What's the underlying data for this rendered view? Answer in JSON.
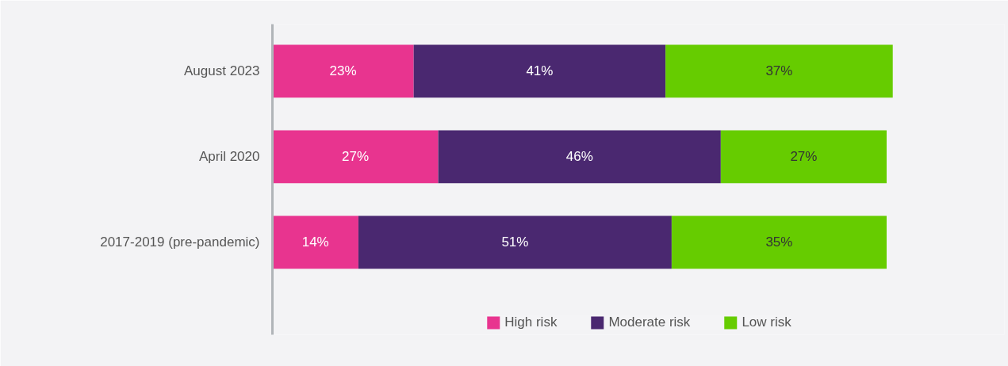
{
  "chart_data": {
    "type": "bar",
    "orientation": "horizontal",
    "stacked": true,
    "grid": false,
    "legend": "bottom",
    "tick_labels": "y",
    "categories": [
      "August 2023",
      "April 2020",
      "2017-2019 (pre-pandemic)"
    ],
    "series": [
      {
        "name": "High risk",
        "color": "#e8348f",
        "values": [
          23,
          27,
          14
        ],
        "value_labels": [
          "23%",
          "27%",
          "14%"
        ]
      },
      {
        "name": "Moderate risk",
        "color": "#4a2870",
        "values": [
          41,
          46,
          51
        ],
        "value_labels": [
          "41%",
          "46%",
          "51%"
        ]
      },
      {
        "name": "Low risk",
        "color": "#66cc00",
        "values": [
          37,
          27,
          35
        ],
        "value_labels": [
          "37%",
          "27%",
          "35%"
        ]
      }
    ]
  }
}
